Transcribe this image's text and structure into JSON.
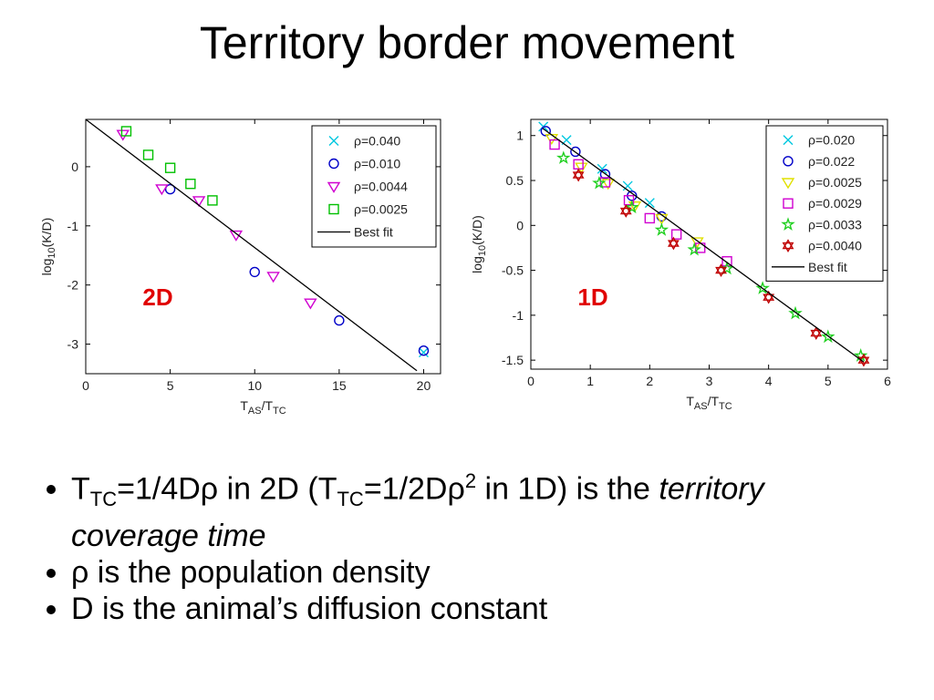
{
  "title": "Territory border movement",
  "chart_data": [
    {
      "type": "scatter",
      "annotation": "2D",
      "annotation_color": "#e00000",
      "xlabel_parts": [
        "T",
        "AS",
        "/T",
        "TC"
      ],
      "ylabel_parts": [
        "log",
        "10",
        "(K/D)"
      ],
      "xlim": [
        0,
        21
      ],
      "ylim": [
        -3.5,
        0.8
      ],
      "xticks": [
        0,
        5,
        10,
        15,
        20
      ],
      "yticks": [
        -3,
        -2,
        -1,
        0
      ],
      "legend": "upper right",
      "series": [
        {
          "name": "ρ=0.040",
          "color": "#00c8e0",
          "marker": "x",
          "x": [
            20
          ],
          "values": [
            -3.14
          ]
        },
        {
          "name": "ρ=0.010",
          "color": "#0000c8",
          "marker": "o",
          "x": [
            5,
            10,
            15,
            20
          ],
          "values": [
            -0.38,
            -1.78,
            -2.6,
            -3.11
          ]
        },
        {
          "name": "ρ=0.0044",
          "color": "#d000d0",
          "marker": "v",
          "x": [
            2.2,
            4.5,
            6.7,
            8.9,
            11.1,
            13.3
          ],
          "values": [
            0.55,
            -0.37,
            -0.57,
            -1.15,
            -1.85,
            -2.3
          ]
        },
        {
          "name": "ρ=0.0025",
          "color": "#00c000",
          "marker": "s",
          "x": [
            2.4,
            3.7,
            5.0,
            6.2,
            7.5
          ],
          "values": [
            0.6,
            0.2,
            -0.02,
            -0.29,
            -0.57
          ]
        },
        {
          "name": "Best fit",
          "color": "#000000",
          "marker": "line",
          "x": [
            0,
            19.6
          ],
          "values": [
            0.8,
            -3.45
          ]
        }
      ]
    },
    {
      "type": "scatter",
      "annotation": "1D",
      "annotation_color": "#e00000",
      "xlabel_parts": [
        "T",
        "AS",
        "/T",
        "TC"
      ],
      "ylabel_parts": [
        "log",
        "10",
        "(K/D)"
      ],
      "xlim": [
        0,
        6
      ],
      "ylim": [
        -1.6,
        1.18
      ],
      "xticks": [
        0,
        1,
        2,
        3,
        4,
        5,
        6
      ],
      "yticks": [
        -1.5,
        -1,
        -0.5,
        0,
        0.5,
        1
      ],
      "legend": "upper right",
      "series": [
        {
          "name": "ρ=0.020",
          "color": "#00c8e0",
          "marker": "x",
          "x": [
            0.21,
            0.6,
            1.2,
            1.63,
            2.0
          ],
          "values": [
            1.1,
            0.95,
            0.63,
            0.44,
            0.25
          ]
        },
        {
          "name": "ρ=0.022",
          "color": "#0000c8",
          "marker": "o",
          "x": [
            0.25,
            0.75,
            1.25,
            1.7,
            2.2
          ],
          "values": [
            1.05,
            0.82,
            0.57,
            0.33,
            0.1
          ]
        },
        {
          "name": "ρ=0.0025",
          "color": "#e0e000",
          "marker": "v",
          "x": [
            0.35,
            0.85,
            1.3,
            1.75,
            2.2,
            2.8
          ],
          "values": [
            0.97,
            0.65,
            0.47,
            0.22,
            0.08,
            -0.18
          ]
        },
        {
          "name": "ρ=0.0029",
          "color": "#d000d0",
          "marker": "s",
          "x": [
            0.4,
            0.8,
            1.25,
            1.65,
            2.0,
            2.45,
            2.85,
            3.3
          ],
          "values": [
            0.9,
            0.68,
            0.48,
            0.28,
            0.08,
            -0.1,
            -0.25,
            -0.4
          ]
        },
        {
          "name": "ρ=0.0033",
          "color": "#20d020",
          "marker": "*",
          "x": [
            0.55,
            1.15,
            1.7,
            2.2,
            2.75,
            3.3,
            3.9,
            4.45,
            5.0,
            5.55
          ],
          "values": [
            0.75,
            0.47,
            0.2,
            -0.05,
            -0.27,
            -0.48,
            -0.7,
            -0.98,
            -1.24,
            -1.45
          ]
        },
        {
          "name": "ρ=0.0040",
          "color": "#c00000",
          "marker": "h",
          "x": [
            0.8,
            1.6,
            2.4,
            3.2,
            4.0,
            4.8,
            5.6
          ],
          "values": [
            0.56,
            0.16,
            -0.2,
            -0.5,
            -0.8,
            -1.2,
            -1.5
          ]
        },
        {
          "name": "Best fit",
          "color": "#000000",
          "marker": "line",
          "x": [
            0.2,
            5.6
          ],
          "values": [
            1.08,
            -1.52
          ]
        }
      ]
    }
  ],
  "bullets": [
    [
      {
        "t": "T"
      },
      {
        "t": "TC",
        "s": "sub"
      },
      {
        "t": "=1/4Dρ in 2D (T"
      },
      {
        "t": "TC",
        "s": "sub"
      },
      {
        "t": "=1/2Dρ"
      },
      {
        "t": "2",
        "s": "sup"
      },
      {
        "t": " in 1D) is the "
      },
      {
        "t": "territory coverage time",
        "s": "em"
      }
    ],
    [
      {
        "t": "ρ is the population density"
      }
    ],
    [
      {
        "t": "D is the animal’s diffusion constant"
      }
    ]
  ]
}
